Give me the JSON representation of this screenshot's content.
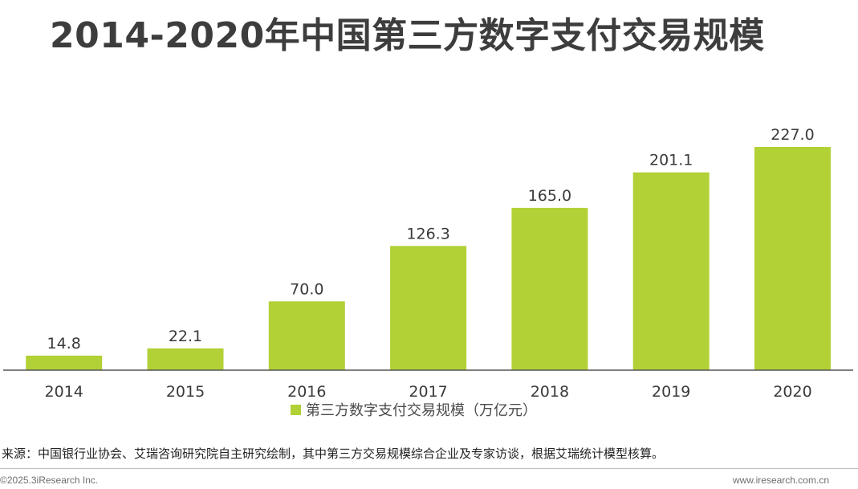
{
  "title": "2014-2020年中国第三方数字支付交易规模",
  "chart_data": {
    "type": "bar",
    "categories": [
      "2014",
      "2015",
      "2016",
      "2017",
      "2018",
      "2019",
      "2020"
    ],
    "series": [
      {
        "name": "第三方数字支付交易规模（万亿元）",
        "values": [
          14.8,
          22.1,
          70.0,
          126.3,
          165.0,
          201.1,
          227.0
        ]
      }
    ],
    "value_labels": [
      "14.8",
      "22.1",
      "70.0",
      "126.3",
      "165.0",
      "201.1",
      "227.0"
    ],
    "ylim": [
      0,
      227.0
    ],
    "grid": false,
    "legend": "bottom"
  },
  "colors": {
    "bar": "#b1d136",
    "axis": "#555555"
  },
  "source": "来源：中国银行业协会、艾瑞咨询研究院自主研究绘制，其中第三方交易规模综合企业及专家访谈，根据艾瑞统计模型核算。",
  "footer": {
    "copyright": "©2025.3iResearch Inc.",
    "website": "www.iresearch.com.cn"
  }
}
